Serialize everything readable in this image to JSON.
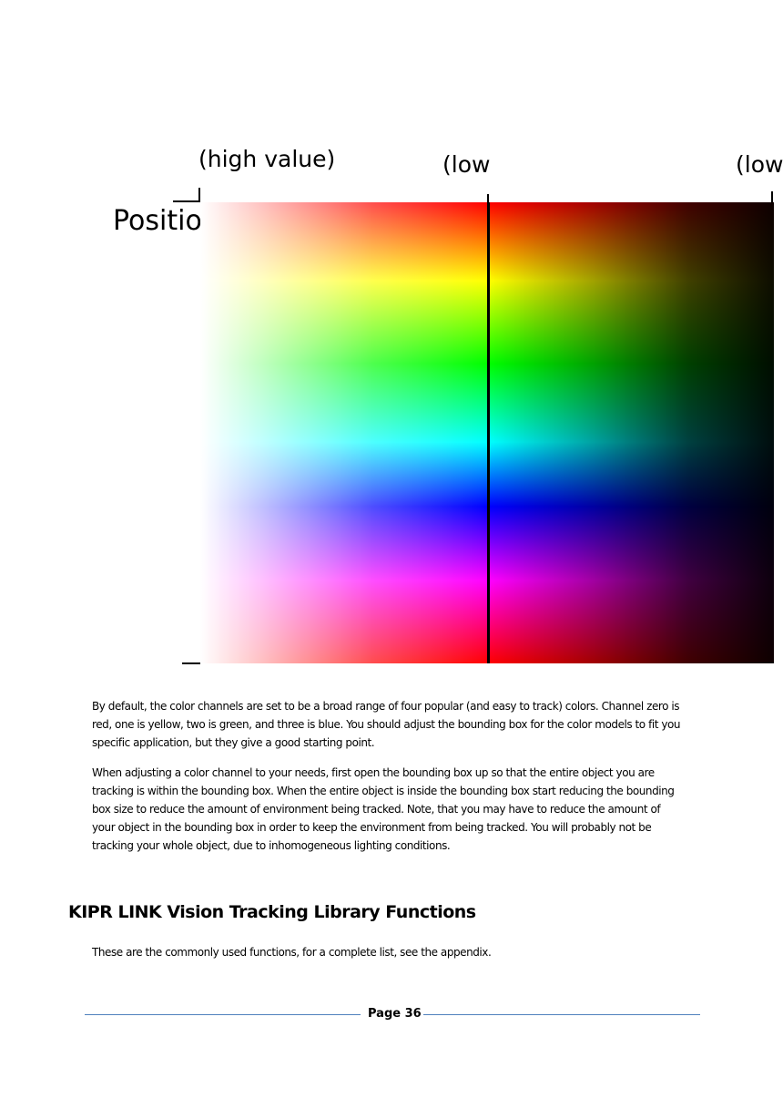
{
  "figure": {
    "label_high": "(high value)",
    "label_low_left": "(low",
    "label_low_right": "(low",
    "label_position": "Positio"
  },
  "body": {
    "paragraph1": "By default, the color channels are set to be a broad range of four popular (and easy to track) colors. Channel zero is red, one is yellow, two is green, and three is blue. You should adjust the bounding box for the color models to fit you specific application, but they give a good starting point.",
    "paragraph2": "When adjusting a color channel to your needs, first open the bounding box up so that the entire object you are tracking is within the bounding box. When the entire object is inside the bounding box start reducing the bounding box size to reduce the amount of environment being tracked. Note, that you may have to reduce the amount of your object in the bounding box in order to keep the environment from being tracked. You will probably not be tracking your whole object, due to inhomogeneous lighting conditions.",
    "section_heading": "KIPR LINK Vision Tracking Library Functions",
    "paragraph3": "These are the commonly used functions, for a complete list, see the appendix."
  },
  "footer": {
    "page_label": "Page 36"
  }
}
